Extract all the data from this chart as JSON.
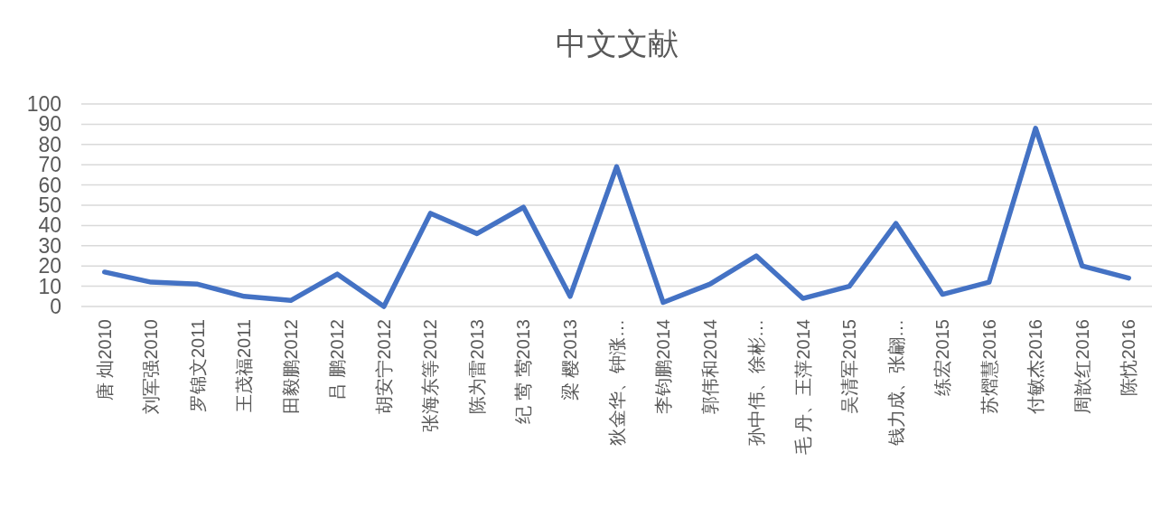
{
  "chart_data": {
    "type": "line",
    "title": "中文文献",
    "categories": [
      "唐 灿2010",
      "刘军强2010",
      "罗锦文2011",
      "王茂福2011",
      "田毅鹏2012",
      "吕 鹏2012",
      "胡安宁2012",
      "张海东等2012",
      "陈为雷2013",
      "纪 莺 莺2013",
      "梁 樱2013",
      "狄金华、钟涨…",
      "李钧鹏2014",
      "郭伟和2014",
      "孙中伟、徐彬…",
      "毛 丹、王萍2014",
      "吴清军2015",
      "钱力成、张翩…",
      "练宏2015",
      "苏熠慧2016",
      "付敏杰2016",
      "周歆红2016",
      "陈忱2016"
    ],
    "values": [
      17,
      12,
      11,
      5,
      3,
      16,
      0,
      46,
      36,
      49,
      5,
      69,
      2,
      11,
      25,
      4,
      10,
      41,
      6,
      12,
      88,
      20,
      14
    ],
    "color": "#4472c4",
    "ylim": [
      0,
      100
    ],
    "yticks": [
      0,
      10,
      20,
      30,
      40,
      50,
      60,
      70,
      80,
      90,
      100
    ],
    "grid": "y"
  }
}
